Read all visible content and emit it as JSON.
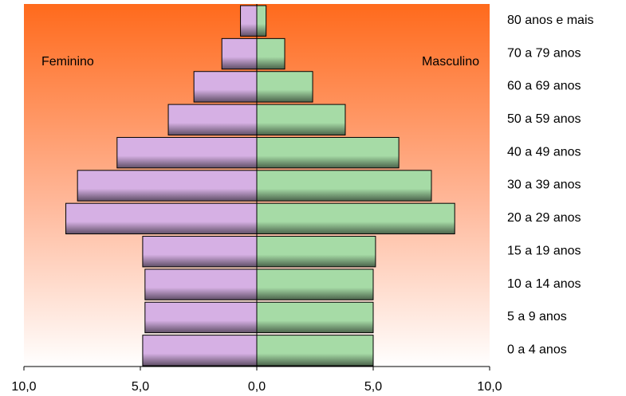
{
  "chart_data": {
    "type": "pyramid",
    "categories": [
      "80 anos e mais",
      "70 a 79 anos",
      "60 a 69 anos",
      "50 a 59 anos",
      "40 a 49 anos",
      "30 a 39 anos",
      "20 a 29 anos",
      "15 a 19 anos",
      "10 a 14 anos",
      "5 a 9 anos",
      "0 a 4 anos"
    ],
    "series": [
      {
        "name": "Feminino",
        "color": "#d6b0e4",
        "values": [
          -0.7,
          -1.5,
          -2.7,
          -3.8,
          -6.0,
          -7.7,
          -8.2,
          -4.9,
          -4.8,
          -4.8,
          -4.9
        ]
      },
      {
        "name": "Masculino",
        "color": "#a6dba6",
        "values": [
          0.4,
          1.2,
          2.4,
          3.8,
          6.1,
          7.5,
          8.5,
          5.1,
          5.0,
          5.0,
          5.0
        ]
      }
    ],
    "xlim": [
      -10,
      10
    ],
    "xticks": [
      {
        "value": -10,
        "label": "10,0"
      },
      {
        "value": -5,
        "label": "5,0"
      },
      {
        "value": 0,
        "label": "0,0"
      },
      {
        "value": 5,
        "label": "5,0"
      },
      {
        "value": 10,
        "label": "10,0"
      }
    ]
  }
}
